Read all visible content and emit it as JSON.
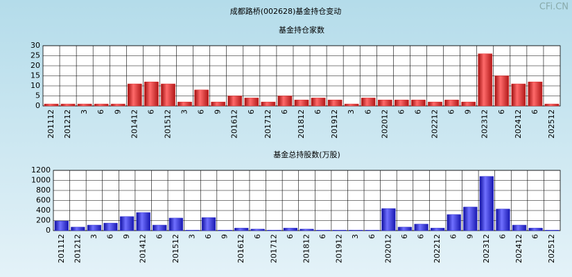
{
  "title": "成都路桥(002628)基金持仓变动",
  "watermark": "CFi.CN",
  "chart_data": [
    {
      "type": "bar",
      "title": "基金持仓家数",
      "color": "#e03030",
      "grid": true,
      "categories": [
        "201112",
        "201212",
        "3",
        "6",
        "9",
        "201412",
        "6",
        "201512",
        "3",
        "6",
        "9",
        "201612",
        "6",
        "201712",
        "6",
        "201812",
        "6",
        "201912",
        "3",
        "6",
        "202012",
        "6",
        "6",
        "202212",
        "6",
        "9",
        "202312",
        "6",
        "202412",
        "6",
        "202512"
      ],
      "values": [
        1,
        1,
        1,
        1,
        1,
        11,
        12,
        11,
        2,
        8,
        2,
        5,
        4,
        2,
        5,
        3,
        4,
        3,
        1,
        4,
        3,
        3,
        3,
        2,
        3,
        2,
        26,
        15,
        11,
        12,
        1
      ],
      "ylim": [
        0,
        30
      ],
      "yticks": [
        0,
        5,
        10,
        15,
        20,
        25,
        30
      ]
    },
    {
      "type": "bar",
      "title": "基金总持股数(万股)",
      "color": "#3030d0",
      "grid": true,
      "categories": [
        "201112",
        "201212",
        "3",
        "6",
        "9",
        "201412",
        "6",
        "201512",
        "3",
        "6",
        "9",
        "201612",
        "6",
        "201712",
        "6",
        "201812",
        "6",
        "201912",
        "3",
        "6",
        "202012",
        "6",
        "6",
        "202212",
        "6",
        "9",
        "202312",
        "6",
        "202412",
        "6",
        "202512"
      ],
      "values": [
        190,
        70,
        110,
        150,
        280,
        360,
        110,
        250,
        10,
        260,
        10,
        50,
        30,
        10,
        50,
        30,
        10,
        10,
        10,
        10,
        440,
        70,
        130,
        50,
        320,
        470,
        1080,
        430,
        110,
        50,
        10
      ],
      "ylim": [
        0,
        1200
      ],
      "yticks": [
        0,
        200,
        400,
        600,
        800,
        1000,
        1200
      ]
    }
  ]
}
